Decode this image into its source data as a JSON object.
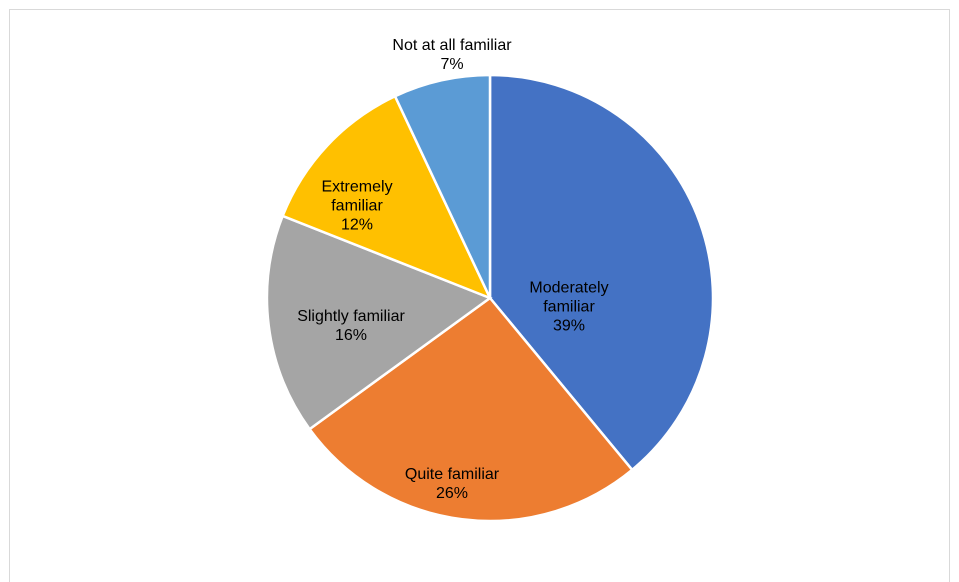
{
  "chart_data": {
    "type": "pie",
    "categories": [
      "Moderately familiar",
      "Quite familiar",
      "Slightly familiar",
      "Extremely familiar",
      "Not at all familiar"
    ],
    "values": [
      39,
      26,
      16,
      12,
      7
    ],
    "value_labels": [
      "39%",
      "26%",
      "16%",
      "12%",
      "7%"
    ],
    "colors": [
      "#4472c4",
      "#ed7d31",
      "#a5a5a5",
      "#ffc000",
      "#5b9bd5"
    ]
  }
}
